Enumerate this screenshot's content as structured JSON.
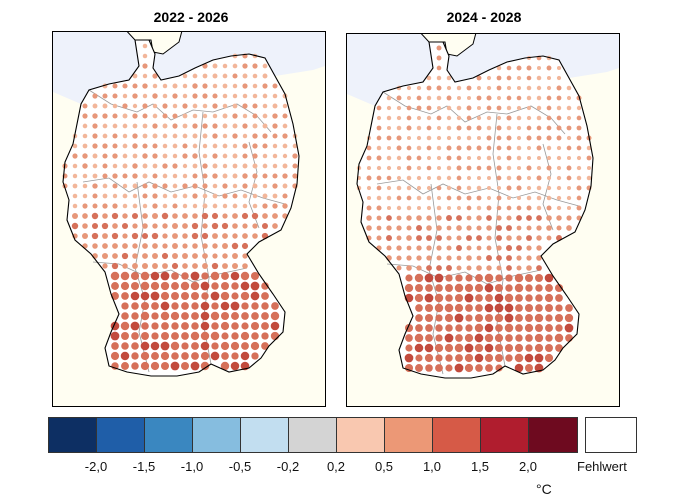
{
  "panels": [
    {
      "title": "2022 - 2026"
    },
    {
      "title": "2024 - 2028"
    }
  ],
  "legend": {
    "colors": [
      "#0d2f63",
      "#1f5ea8",
      "#3a87c0",
      "#86bddf",
      "#c2def0",
      "#d4d4d4",
      "#f9c8b0",
      "#ec9876",
      "#d65a47",
      "#b01d2e",
      "#6e0a1f"
    ],
    "ticks": [
      "-2,0",
      "-1,5",
      "-1,0",
      "-0,5",
      "-0,2",
      "0,2",
      "0,5",
      "1,0",
      "1,5",
      "2,0"
    ],
    "missing_label": "Fehlwert",
    "missing_color": "#ffffff",
    "unit": "°C"
  },
  "colors": {
    "sea": "#eef2fb",
    "land_outside": "#fffef2",
    "germany": "#ffffff",
    "border": "#000000",
    "state_border": "#999999",
    "dot_light": "#f2b69a",
    "dot_mid": "#e7977a",
    "dot_strong": "#d6705a",
    "dot_hot": "#c24a3d"
  }
}
